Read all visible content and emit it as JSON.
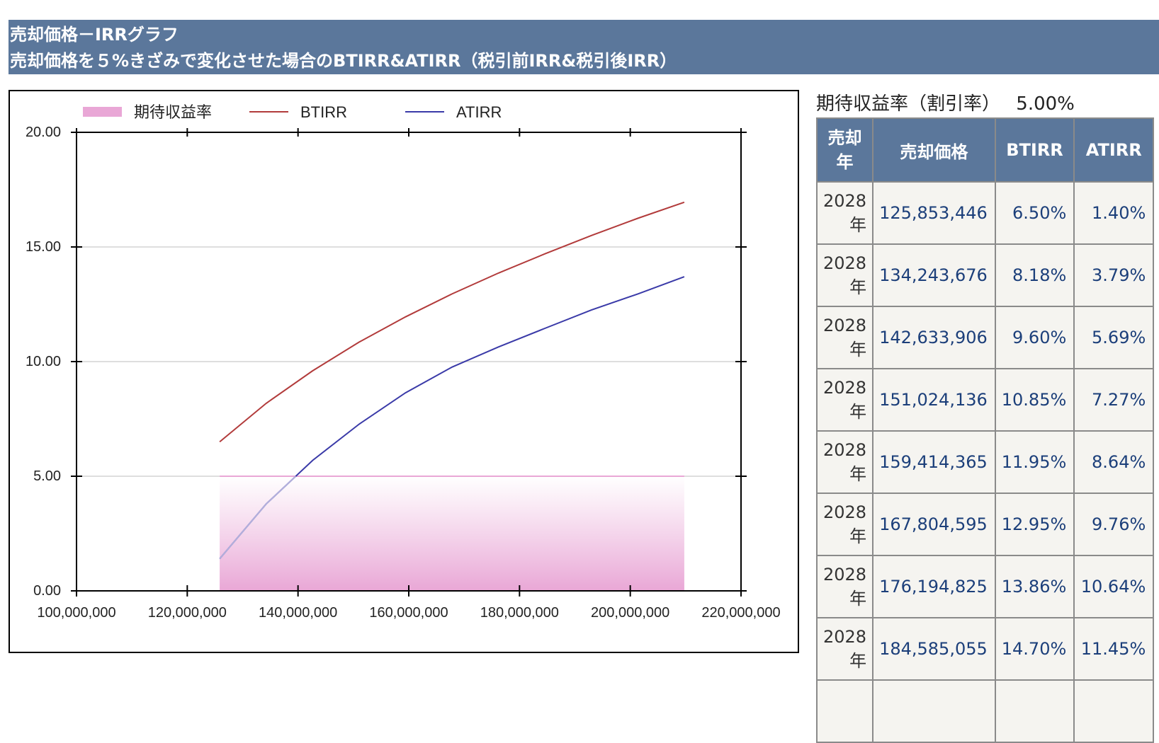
{
  "header": {
    "title": "売却価格－IRRグラフ",
    "subtitle": "売却価格を５%きざみで変化させた場合のBTIRR&ATIRR（税引前IRR&税引後IRR）"
  },
  "chart_data": {
    "type": "line",
    "legend": [
      "期待収益率",
      "BTIRR",
      "ATIRR"
    ],
    "legend_position": "top",
    "grid": true,
    "xlim": [
      100000000,
      220000000
    ],
    "ylim": [
      0,
      20
    ],
    "x_ticks": [
      "100,000,000",
      "120,000,000",
      "140,000,000",
      "160,000,000",
      "180,000,000",
      "200,000,000",
      "220,000,000"
    ],
    "y_ticks": [
      "0.00",
      "5.00",
      "10.00",
      "15.00",
      "20.00"
    ],
    "expected_rate_band": {
      "name": "期待収益率",
      "value": 5.0,
      "x_range": [
        125853446,
        209756000
      ]
    },
    "series": [
      {
        "name": "BTIRR",
        "x": [
          125853446,
          134243676,
          142633906,
          151024136,
          159414365,
          167804595,
          176194825,
          184585055,
          192975284,
          201365514,
          209756000
        ],
        "values": [
          6.5,
          8.18,
          9.6,
          10.85,
          11.95,
          12.95,
          13.86,
          14.7,
          15.5,
          16.25,
          16.95
        ]
      },
      {
        "name": "ATIRR",
        "x": [
          125853446,
          134243676,
          142633906,
          151024136,
          159414365,
          167804595,
          176194825,
          184585055,
          192975284,
          201365514,
          209756000
        ],
        "values": [
          1.4,
          3.79,
          5.69,
          7.27,
          8.64,
          9.76,
          10.64,
          11.45,
          12.25,
          12.95,
          13.7
        ]
      }
    ]
  },
  "colors": {
    "header_bg": "#5b779b",
    "btirr": "#b23b3b",
    "atirr": "#3a3aa8",
    "band": "#e9a7d6"
  },
  "expected_rate": {
    "label": "期待収益率（割引率）",
    "value": "5.00%"
  },
  "table": {
    "headers": {
      "year_a": "売却",
      "year_b": "年",
      "price": "売却価格",
      "btirr": "BTIRR",
      "atirr": "ATIRR"
    },
    "rows": [
      {
        "year": "2028",
        "unit": "年",
        "price": "125,853,446",
        "btirr": "6.50%",
        "atirr": "1.40%"
      },
      {
        "year": "2028",
        "unit": "年",
        "price": "134,243,676",
        "btirr": "8.18%",
        "atirr": "3.79%"
      },
      {
        "year": "2028",
        "unit": "年",
        "price": "142,633,906",
        "btirr": "9.60%",
        "atirr": "5.69%"
      },
      {
        "year": "2028",
        "unit": "年",
        "price": "151,024,136",
        "btirr": "10.85%",
        "atirr": "7.27%"
      },
      {
        "year": "2028",
        "unit": "年",
        "price": "159,414,365",
        "btirr": "11.95%",
        "atirr": "8.64%"
      },
      {
        "year": "2028",
        "unit": "年",
        "price": "167,804,595",
        "btirr": "12.95%",
        "atirr": "9.76%"
      },
      {
        "year": "2028",
        "unit": "年",
        "price": "176,194,825",
        "btirr": "13.86%",
        "atirr": "10.64%"
      },
      {
        "year": "2028",
        "unit": "年",
        "price": "184,585,055",
        "btirr": "14.70%",
        "atirr": "11.45%"
      }
    ]
  }
}
